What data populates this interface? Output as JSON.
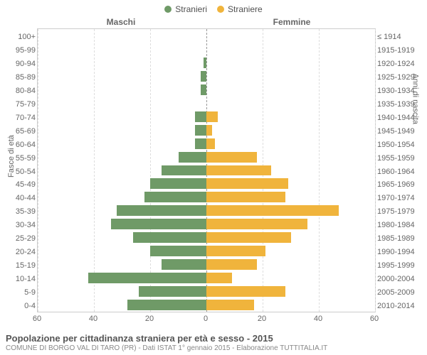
{
  "legend": {
    "male": "Stranieri",
    "female": "Straniere"
  },
  "side_titles": {
    "left": "Maschi",
    "right": "Femmine"
  },
  "axis_titles": {
    "left": "Fasce di età",
    "right": "Anni di nascita"
  },
  "chart": {
    "type": "population-pyramid",
    "xmax": 60,
    "xticks": [
      60,
      40,
      20,
      0,
      20,
      40,
      60
    ],
    "colors": {
      "male": "#6f9a67",
      "female": "#f0b43c",
      "grid": "#dddddd",
      "center": "#999999",
      "border": "#cccccc",
      "text": "#666666",
      "bg": "#ffffff"
    },
    "fontsize_labels": 11,
    "fontsize_legend": 12,
    "fontsize_title": 13,
    "fontsize_sub": 10,
    "rows": [
      {
        "age": "100+",
        "years": "≤ 1914",
        "m": 0,
        "f": 0
      },
      {
        "age": "95-99",
        "years": "1915-1919",
        "m": 0,
        "f": 0
      },
      {
        "age": "90-94",
        "years": "1920-1924",
        "m": 1,
        "f": 0
      },
      {
        "age": "85-89",
        "years": "1925-1929",
        "m": 2,
        "f": 0
      },
      {
        "age": "80-84",
        "years": "1930-1934",
        "m": 2,
        "f": 0
      },
      {
        "age": "75-79",
        "years": "1935-1939",
        "m": 0,
        "f": 0
      },
      {
        "age": "70-74",
        "years": "1940-1944",
        "m": 4,
        "f": 4
      },
      {
        "age": "65-69",
        "years": "1945-1949",
        "m": 4,
        "f": 2
      },
      {
        "age": "60-64",
        "years": "1950-1954",
        "m": 4,
        "f": 3
      },
      {
        "age": "55-59",
        "years": "1955-1959",
        "m": 10,
        "f": 18
      },
      {
        "age": "50-54",
        "years": "1960-1964",
        "m": 16,
        "f": 23
      },
      {
        "age": "45-49",
        "years": "1965-1969",
        "m": 20,
        "f": 29
      },
      {
        "age": "40-44",
        "years": "1970-1974",
        "m": 22,
        "f": 28
      },
      {
        "age": "35-39",
        "years": "1975-1979",
        "m": 32,
        "f": 47
      },
      {
        "age": "30-34",
        "years": "1980-1984",
        "m": 34,
        "f": 36
      },
      {
        "age": "25-29",
        "years": "1985-1989",
        "m": 26,
        "f": 30
      },
      {
        "age": "20-24",
        "years": "1990-1994",
        "m": 20,
        "f": 21
      },
      {
        "age": "15-19",
        "years": "1995-1999",
        "m": 16,
        "f": 18
      },
      {
        "age": "10-14",
        "years": "2000-2004",
        "m": 42,
        "f": 9
      },
      {
        "age": "5-9",
        "years": "2005-2009",
        "m": 24,
        "f": 28
      },
      {
        "age": "0-4",
        "years": "2010-2014",
        "m": 28,
        "f": 17
      }
    ]
  },
  "footer": {
    "title": "Popolazione per cittadinanza straniera per età e sesso - 2015",
    "sub": "COMUNE DI BORGO VAL DI TARO (PR) - Dati ISTAT 1° gennaio 2015 - Elaborazione TUTTITALIA.IT"
  }
}
